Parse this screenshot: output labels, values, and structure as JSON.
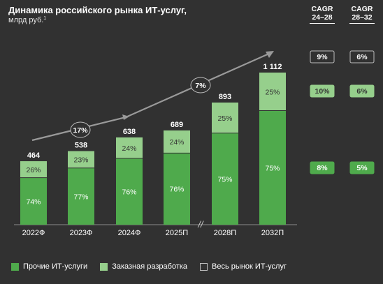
{
  "header": {
    "title": "Динамика российского рынка ИТ-услуг,",
    "subtitle": "млрд руб.",
    "footnote_mark": "1"
  },
  "cagr_table": {
    "columns": [
      {
        "line1": "CAGR",
        "line2": "24–28"
      },
      {
        "line1": "CAGR",
        "line2": "28–32"
      }
    ],
    "rows": [
      {
        "key": "total",
        "values": [
          "9%",
          "6%"
        ]
      },
      {
        "key": "custom_dev",
        "values": [
          "10%",
          "6%"
        ]
      },
      {
        "key": "other_it",
        "values": [
          "8%",
          "5%"
        ]
      }
    ]
  },
  "chart_data": {
    "type": "bar",
    "stacked": true,
    "categories": [
      "2022Ф",
      "2023Ф",
      "2024Ф",
      "2025П",
      "2028П",
      "2032П"
    ],
    "totals": [
      "464",
      "538",
      "638",
      "689",
      "893",
      "1 112"
    ],
    "total_values": [
      464,
      538,
      638,
      689,
      893,
      1112
    ],
    "series": [
      {
        "name": "Прочие ИТ-услуги",
        "color": "#4faa4c",
        "shares_pct": [
          74,
          77,
          76,
          76,
          75,
          75
        ],
        "labels": [
          "74%",
          "77%",
          "76%",
          "76%",
          "75%",
          "75%"
        ]
      },
      {
        "name": "Заказная разработка",
        "color": "#96cf8c",
        "shares_pct": [
          26,
          23,
          24,
          24,
          25,
          25
        ],
        "labels": [
          "26%",
          "23%",
          "24%",
          "24%",
          "25%",
          "25%"
        ]
      }
    ],
    "total_series_name": "Весь рынок ИТ-услуг",
    "trend_annotations": [
      "17%",
      "7%"
    ],
    "axis_break_between": [
      "2025П",
      "2028П"
    ],
    "ylim": [
      0,
      1112
    ]
  },
  "colors": {
    "background": "#313131",
    "dark_green": "#4faa4c",
    "light_green": "#96cf8c",
    "trend_line": "#9a9a9a"
  }
}
